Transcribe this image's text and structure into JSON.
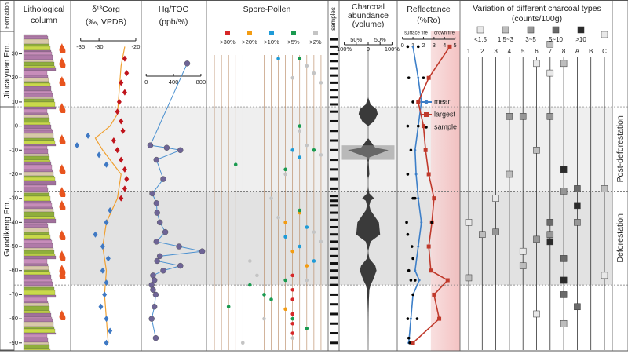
{
  "formation_label": "Formation",
  "formations": [
    {
      "name": "Jiucaiyuan Fm.",
      "top": 38,
      "base": 8
    },
    {
      "name": "Guodikeng Fm.",
      "top": 8,
      "base": -93
    }
  ],
  "depth": {
    "ylim": [
      38,
      -93
    ],
    "yticks": [
      30,
      20,
      10,
      0,
      -10,
      -20,
      -30,
      -40,
      -50,
      -60,
      -70,
      -80,
      -90
    ]
  },
  "zones": [
    {
      "name": "Post-deforestation",
      "top": 8,
      "base": -27
    },
    {
      "name": "Deforestation",
      "top": -27,
      "base": -66
    }
  ],
  "lithology_title": [
    "Lithological",
    "column"
  ],
  "samples": {
    "title": "samples",
    "depths": [
      36,
      33,
      30,
      27,
      24,
      21,
      18,
      15,
      12,
      9,
      6,
      2,
      -2,
      -6,
      -10,
      -14,
      -18,
      -22,
      -26,
      -29,
      -31,
      -33,
      -36,
      -39,
      -42,
      -45,
      -48,
      -51,
      -54,
      -57,
      -60,
      -63,
      -66,
      -70,
      -74,
      -78,
      -82,
      -86,
      -90
    ]
  },
  "chart_data": [
    {
      "type": "scatter",
      "title": [
        "δ¹³Corg",
        "(‰, VPDB)"
      ],
      "xlim": [
        -37.5,
        -18.5
      ],
      "xticks": [
        -35,
        -30,
        -20
      ],
      "series": [
        {
          "color": "#c0141c",
          "depth": [
            28,
            22,
            18,
            14,
            10,
            6,
            2,
            -2,
            -6,
            -10,
            -14,
            -18,
            -22,
            -26,
            -30
          ],
          "values": [
            -23,
            -22.5,
            -24,
            -23,
            -24.5,
            -25,
            -24,
            -23.5,
            -26,
            -25,
            -24,
            -23,
            -22.5,
            -23,
            -24
          ]
        },
        {
          "color": "#3f79c4",
          "depth": [
            -4,
            -8,
            -12,
            -16,
            -35,
            -40,
            -45,
            -50,
            -55,
            -60,
            -65,
            -70,
            -75,
            -80,
            -85,
            -90
          ],
          "values": [
            -33,
            -36,
            -30,
            -28,
            -27,
            -28,
            -31,
            -29,
            -27.5,
            -29,
            -28,
            -28.5,
            -29.5,
            -28,
            -27,
            -28
          ]
        }
      ],
      "line": {
        "color": "#f0a030",
        "depth": [
          33,
          25,
          15,
          5,
          0,
          -5,
          -10,
          -20,
          -30,
          -40,
          -50,
          -60,
          -70,
          -80,
          -90
        ],
        "values": [
          -23,
          -24,
          -24.5,
          -25,
          -27,
          -31,
          -29,
          -24,
          -25,
          -28,
          -29,
          -28,
          -28.5,
          -28,
          -27.5
        ]
      }
    },
    {
      "type": "line",
      "title": [
        "Hg/TOC",
        "(ppb/%)"
      ],
      "xlim": [
        -60,
        870
      ],
      "xticks": [
        0,
        400,
        800
      ],
      "color": "#4a90d0",
      "marker_color": "#6e6496",
      "depth": [
        26,
        -8,
        -9,
        -10,
        -14,
        -22,
        -28,
        -32,
        -36,
        -40,
        -44,
        -48,
        -50,
        -52,
        -54,
        -56,
        -58,
        -60,
        -62,
        -64,
        -66,
        -68,
        -70,
        -75,
        -80,
        -88
      ],
      "values": [
        600,
        60,
        300,
        500,
        150,
        250,
        90,
        150,
        160,
        200,
        280,
        150,
        480,
        820,
        200,
        160,
        500,
        250,
        100,
        120,
        80,
        100,
        140,
        120,
        80,
        140
      ]
    },
    {
      "type": "presence",
      "title": "Spore-Pollen",
      "xlim": [
        0,
        17
      ],
      "columns": 16,
      "series": [
        {
          "name": ">30%",
          "color": "#d62728",
          "values": [
            12,
            12,
            12,
            12,
            12,
            12
          ],
          "depth": [
            -62,
            -68,
            -72,
            -78,
            -82,
            -86
          ]
        },
        {
          "name": ">20%",
          "color": "#f39c12",
          "values": [
            11,
            13,
            12,
            14,
            11
          ],
          "depth": [
            -40,
            -36,
            -52,
            -58,
            -76
          ]
        },
        {
          "name": ">10%",
          "color": "#1f9bd7",
          "values": [
            12,
            14,
            11,
            13,
            15,
            10,
            13
          ],
          "depth": [
            -10,
            -42,
            -46,
            -50,
            -56,
            28,
            -13
          ]
        },
        {
          "name": ">5%",
          "color": "#1a9a50",
          "values": [
            13,
            13,
            15,
            13,
            11,
            6,
            4,
            8,
            9,
            12,
            14,
            11,
            3
          ],
          "depth": [
            28,
            0,
            -10,
            -35,
            -64,
            -66,
            -16,
            -70,
            -72,
            -80,
            -84,
            -18,
            -75
          ]
        },
        {
          "name": ">2%",
          "color": "#c4c4c4",
          "values": [
            14,
            15,
            16,
            13,
            14,
            16,
            12,
            11,
            9,
            10,
            7,
            8,
            15,
            16,
            14,
            12,
            5,
            6
          ],
          "depth": [
            25,
            22,
            18,
            -2,
            -8,
            -12,
            20,
            -20,
            -30,
            -38,
            -62,
            -80,
            -44,
            -48,
            -64,
            -88,
            -90,
            -56
          ]
        }
      ]
    },
    {
      "type": "violin",
      "title": [
        "Charcoal",
        "abundance",
        "(volume)"
      ],
      "xlim": [
        -115,
        115
      ],
      "color": "#3a3a3a",
      "xticks": [
        {
          "value": -100,
          "label": "100%"
        },
        {
          "value": -50,
          "label": "50%"
        },
        0,
        {
          "value": 50,
          "label": "50%"
        },
        {
          "value": 100,
          "label": "100%"
        }
      ],
      "depth": [
        38,
        20,
        12,
        9,
        7,
        5,
        2,
        0,
        -5,
        -9,
        -10,
        -11,
        -13,
        -15,
        -20,
        -22,
        -25,
        -28,
        -30,
        -31,
        -33,
        -35,
        -40,
        -45,
        -48,
        -52,
        -55,
        -58,
        -60,
        -64,
        -66,
        -68,
        -72,
        -80,
        -93
      ],
      "values": [
        0,
        0,
        0,
        10,
        35,
        40,
        25,
        0,
        0,
        30,
        85,
        60,
        5,
        2,
        5,
        0,
        0,
        5,
        25,
        10,
        5,
        10,
        45,
        50,
        10,
        0,
        5,
        30,
        35,
        20,
        10,
        5,
        3,
        1,
        0
      ],
      "highlight": {
        "from": -8,
        "to": -14,
        "color": "#8c8c8c"
      }
    },
    {
      "type": "reflectance",
      "title": [
        "Reflectance",
        "(%Ro)"
      ],
      "xlim": [
        -0.5,
        5.4
      ],
      "xticks": [
        0,
        1,
        2,
        3,
        4,
        5
      ],
      "annotations": [
        "surface fire",
        "crown fire"
      ],
      "crown_fire_threshold": 2.7,
      "series": [
        {
          "name": "mean",
          "color": "#3d7fc8",
          "depth": [
            33,
            20,
            10,
            0,
            -10,
            -20,
            -30,
            -40,
            -50,
            -60,
            -64,
            -70,
            -80,
            -90
          ],
          "values": [
            1.0,
            1.5,
            1.8,
            1.5,
            1.2,
            1.3,
            1.5,
            1.8,
            1.5,
            1.2,
            1.6,
            1.0,
            0.8,
            0.6
          ]
        },
        {
          "name": "largest",
          "color": "#c0392b",
          "depth": [
            33,
            20,
            10,
            0,
            -10,
            -20,
            -30,
            -40,
            -50,
            -60,
            -64,
            -70,
            -80,
            -90
          ],
          "values": [
            4.5,
            2.5,
            1.5,
            2.0,
            2.2,
            2.5,
            3.0,
            2.8,
            2.5,
            2.7,
            4.3,
            3.0,
            3.5,
            1.0
          ]
        },
        {
          "name": "sample",
          "color": "#000000",
          "depth": [
            33,
            33,
            20,
            20,
            10,
            0,
            0,
            -10,
            -20,
            -30,
            -30,
            -40,
            -40,
            -50,
            -60,
            -64,
            -64,
            -70,
            -80,
            -80,
            -88,
            -90,
            -45,
            -55
          ],
          "values": [
            0.5,
            1.5,
            2.0,
            0.6,
            1.0,
            0.5,
            1.5,
            0.8,
            0.5,
            1.0,
            1.2,
            0.4,
            2.8,
            0.9,
            0.6,
            1.2,
            0.8,
            1.0,
            0.5,
            1.4,
            0.6,
            0.7,
            0.5,
            1.0
          ]
        }
      ]
    },
    {
      "type": "squares",
      "title": [
        "Variation of different charcoal types",
        "(counts/100g)"
      ],
      "categories": [
        "1",
        "2",
        "3",
        "4",
        "5",
        "6",
        "7",
        "8",
        "A",
        "B",
        "C"
      ],
      "series": [
        {
          "name": "<1.5",
          "color": "#e8e8e8",
          "columns": [
            5,
            6,
            10,
            2,
            0,
            4,
            10,
            5
          ],
          "depth": [
            26,
            22,
            38,
            -30,
            -40,
            -52,
            -62,
            -78
          ]
        },
        {
          "name": "1.5~3",
          "color": "#bdbdbd",
          "columns": [
            6,
            7,
            3,
            5,
            10,
            0,
            1,
            4,
            7
          ],
          "depth": [
            34,
            26,
            -20,
            -10,
            -26,
            -63,
            -45,
            -58,
            -82
          ]
        },
        {
          "name": "3~5",
          "color": "#969696",
          "columns": [
            3,
            4,
            6,
            7,
            5,
            8,
            2,
            6
          ],
          "depth": [
            4,
            4,
            4,
            -27,
            -47,
            -40,
            -44,
            -45
          ]
        },
        {
          "name": "5~10",
          "color": "#6a6a6a",
          "columns": [
            7,
            8,
            6,
            7,
            7,
            8
          ],
          "depth": [
            -70,
            -26,
            -40,
            -55,
            -64,
            -75
          ]
        },
        {
          "name": ">10",
          "color": "#2b2b2b",
          "columns": [
            7,
            8,
            7,
            6
          ],
          "depth": [
            -18,
            -33,
            -64,
            -48
          ]
        }
      ]
    }
  ]
}
